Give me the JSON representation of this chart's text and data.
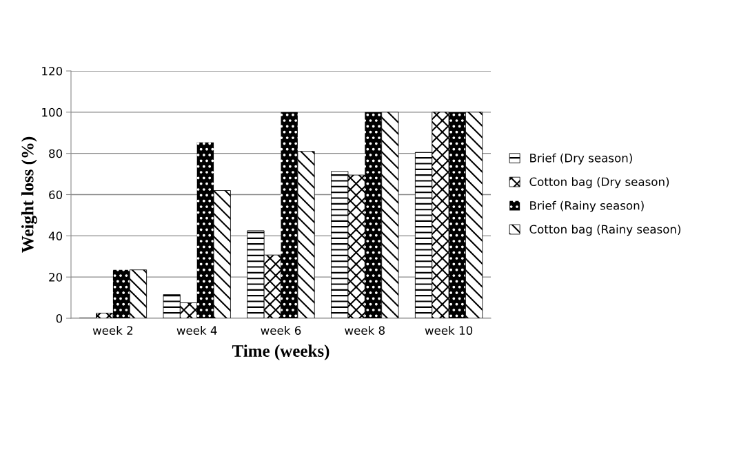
{
  "chart_data": {
    "type": "bar",
    "xlabel": "Time (weeks)",
    "ylabel": "Weight loss (%)",
    "categories": [
      "week 2",
      "week 4",
      "week 6",
      "week 8",
      "week 10"
    ],
    "series": [
      {
        "name": "Brief (Dry season)",
        "color": "#000000",
        "values": [
          0,
          11.5,
          42.5,
          71.3,
          80.5
        ]
      },
      {
        "name": "Cotton bag (Dry season)",
        "color": "#000000",
        "values": [
          2.5,
          7.5,
          30.7,
          69.5,
          100
        ]
      },
      {
        "name": "Brief (Rainy season)",
        "color": "#000000",
        "values": [
          23.5,
          85.3,
          100,
          100,
          100
        ]
      },
      {
        "name": "Cotton bag (Rainy season)",
        "color": "#000000",
        "values": [
          23.5,
          62,
          81,
          100,
          100
        ]
      }
    ],
    "ylim": [
      0,
      120
    ],
    "yticks": [
      0,
      20,
      40,
      60,
      80,
      100,
      120
    ],
    "grid": "y",
    "legend": "right"
  }
}
